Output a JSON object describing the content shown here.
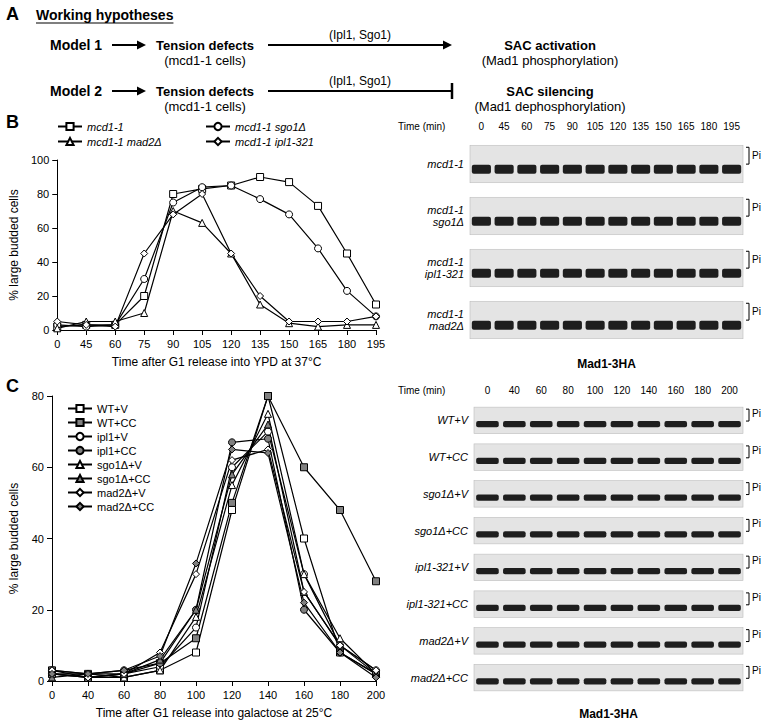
{
  "panel_labels": [
    "A",
    "B",
    "C"
  ],
  "panel_A": {
    "heading": "Working hypotheses",
    "models": [
      {
        "name": "Model 1",
        "source": [
          "Tension defects",
          "(mcd1-1 cells)"
        ],
        "mediators": "(Ipl1, Sgo1)",
        "arrow": "activation",
        "target": [
          "SAC activation",
          "(Mad1 phosphorylation)"
        ]
      },
      {
        "name": "Model 2",
        "source": [
          "Tension defects",
          "(mcd1-1 cells)"
        ],
        "mediators": "(Ipl1, Sgo1)",
        "arrow": "inhibition",
        "target": [
          "SAC silencing",
          "(Mad1 dephosphorylation)"
        ]
      }
    ]
  },
  "blots": [
    {
      "time_header": "Time (min)",
      "times": [
        0,
        45,
        60,
        75,
        90,
        105,
        120,
        135,
        150,
        165,
        180,
        195
      ],
      "rows": [
        [
          "mcd1-1"
        ],
        [
          "mcd1-1",
          "sgo1Δ"
        ],
        [
          "mcd1-1",
          "ipl1-321"
        ],
        [
          "mcd1-1",
          "mad2Δ"
        ]
      ],
      "phospho_label": "Pi",
      "caption": "Mad1-3HA"
    },
    {
      "time_header": "Time (min)",
      "times": [
        0,
        40,
        60,
        80,
        100,
        120,
        140,
        160,
        180,
        200
      ],
      "rows": [
        [
          "WT+V"
        ],
        [
          "WT+CC"
        ],
        [
          "sgo1Δ+V"
        ],
        [
          "sgo1Δ+CC"
        ],
        [
          "ipl1-321+V"
        ],
        [
          "ipl1-321+CC"
        ],
        [
          "mad2Δ+V"
        ],
        [
          "mad2Δ+CC"
        ]
      ],
      "phospho_label": "Pi",
      "caption": "Mad1-3HA"
    }
  ],
  "chart_data": [
    {
      "type": "line",
      "x_label": "Time after G1 release into YPD at 37°C",
      "y_label": "% large budded cells",
      "categories": [
        0,
        45,
        60,
        75,
        90,
        105,
        120,
        135,
        150,
        165,
        180,
        195
      ],
      "series": [
        {
          "name": "mcd1-1",
          "color": "#ffffff",
          "marker": "square",
          "values": [
            2,
            3,
            3,
            20,
            80,
            83,
            85,
            90,
            87,
            73,
            45,
            15
          ]
        },
        {
          "name": "mcd1-1 sgo1Δ",
          "color": "#ffffff",
          "marker": "circle",
          "values": [
            3,
            2,
            3,
            30,
            75,
            84,
            85,
            77,
            68,
            48,
            23,
            8
          ]
        },
        {
          "name": "mcd1-1 mad2Δ",
          "color": "#ffffff",
          "marker": "triangle",
          "values": [
            1,
            5,
            5,
            10,
            70,
            63,
            45,
            15,
            4,
            2,
            3,
            3
          ]
        },
        {
          "name": "mcd1-1 ipl1-321",
          "color": "#ffffff",
          "marker": "diamond",
          "values": [
            5,
            3,
            2,
            45,
            68,
            80,
            45,
            20,
            5,
            5,
            5,
            8
          ]
        }
      ],
      "ylim": [
        0,
        100
      ],
      "yticks": [
        0,
        20,
        40,
        60,
        80,
        100
      ],
      "grid": false,
      "legend": "top"
    },
    {
      "type": "line",
      "x_label": "Time after G1 release into galactose at 25°C",
      "y_label": "% large budded cells",
      "categories": [
        0,
        40,
        60,
        80,
        100,
        120,
        140,
        160,
        180,
        200
      ],
      "series": [
        {
          "name": "WT+V",
          "color": "#ffffff",
          "marker": "square",
          "values": [
            3,
            2,
            1,
            3,
            8,
            48,
            80,
            40,
            8,
            2
          ]
        },
        {
          "name": "WT+CC",
          "color": "#808080",
          "marker": "square",
          "values": [
            2,
            1,
            2,
            5,
            12,
            50,
            80,
            60,
            48,
            28
          ]
        },
        {
          "name": "ipl1+V",
          "color": "#ffffff",
          "marker": "circle",
          "values": [
            2,
            1,
            2,
            4,
            15,
            60,
            70,
            30,
            10,
            3
          ]
        },
        {
          "name": "ipl1+CC",
          "color": "#808080",
          "marker": "circle",
          "values": [
            3,
            2,
            3,
            5,
            20,
            67,
            68,
            20,
            8,
            2
          ]
        },
        {
          "name": "sgo1Δ+V",
          "color": "#ffffff",
          "marker": "triangle",
          "values": [
            2,
            1,
            1,
            3,
            18,
            55,
            75,
            30,
            12,
            2
          ]
        },
        {
          "name": "sgo1Δ+CC",
          "color": "#808080",
          "marker": "triangle",
          "values": [
            1,
            2,
            2,
            6,
            20,
            58,
            72,
            25,
            10,
            2
          ]
        },
        {
          "name": "mad2Δ+V",
          "color": "#ffffff",
          "marker": "diamond",
          "values": [
            3,
            1,
            2,
            8,
            30,
            62,
            65,
            25,
            10,
            3
          ]
        },
        {
          "name": "mad2Δ+CC",
          "color": "#808080",
          "marker": "diamond",
          "values": [
            2,
            2,
            3,
            7,
            33,
            65,
            64,
            22,
            8,
            1
          ]
        }
      ],
      "ylim": [
        0,
        80
      ],
      "yticks": [
        0,
        20,
        40,
        60,
        80
      ],
      "grid": false,
      "legend": "upper left"
    }
  ]
}
